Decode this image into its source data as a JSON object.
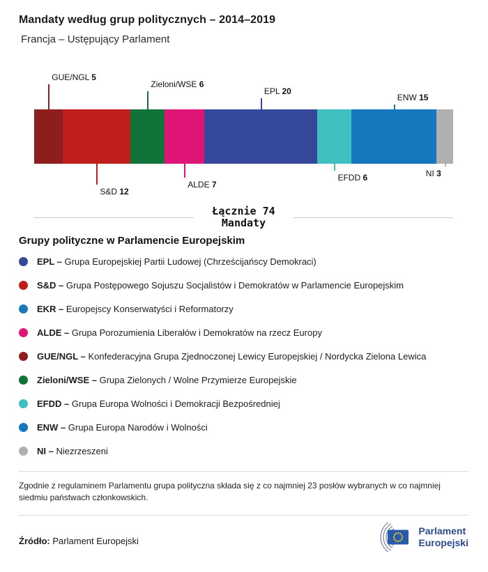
{
  "header": {
    "title": "Mandaty według grup politycznych – 2014–2019",
    "subtitle": "Francja – Ustępujący Parlament"
  },
  "chart_data": {
    "type": "bar",
    "variant": "horizontal-stacked",
    "title": "Mandaty według grup politycznych – 2014–2019",
    "subtitle": "Francja – Ustępujący Parlament",
    "total": 74,
    "total_label": "Łącznie 74",
    "total_sublabel": "Mandaty",
    "categories": [
      "GUE/NGL",
      "S&D",
      "Zieloni/WSE",
      "ALDE",
      "EPL",
      "EFDD",
      "ENW",
      "NI"
    ],
    "values": [
      5,
      12,
      6,
      7,
      20,
      6,
      15,
      3
    ],
    "segments": [
      {
        "name": "GUE/NGL",
        "value": 5,
        "color": "#8e1e1e",
        "label_position": "above"
      },
      {
        "name": "S&D",
        "value": 12,
        "color": "#c01d1d",
        "label_position": "below"
      },
      {
        "name": "Zieloni/WSE",
        "value": 6,
        "color": "#11733a",
        "label_position": "above"
      },
      {
        "name": "ALDE",
        "value": 7,
        "color": "#df1577",
        "label_position": "below"
      },
      {
        "name": "EPL",
        "value": 20,
        "color": "#36489c",
        "label_position": "above"
      },
      {
        "name": "EFDD",
        "value": 6,
        "color": "#3fbfbf",
        "label_position": "below"
      },
      {
        "name": "ENW",
        "value": 15,
        "color": "#1577bd",
        "label_position": "above"
      },
      {
        "name": "NI",
        "value": 3,
        "color": "#b0b0b0",
        "label_position": "below"
      }
    ]
  },
  "legend": {
    "heading": "Grupy polityczne w Parlamencie Europejskim",
    "items": [
      {
        "abbr": "EPL",
        "label": "EPL –",
        "name": "Grupa Europejskiej Partii Ludowej (Chrześcijańscy Demokraci)",
        "color": "#36489c"
      },
      {
        "abbr": "S&D",
        "label": "S&D –",
        "name": "Grupa Postępowego Sojuszu Socjalistów i Demokratów w Parlamencie Europejskim",
        "color": "#c01d1d"
      },
      {
        "abbr": "EKR",
        "label": "EKR –",
        "name": "Europejscy Konserwatyści i Reformatorzy",
        "color": "#1c7ab9"
      },
      {
        "abbr": "ALDE",
        "label": "ALDE –",
        "name": "Grupa Porozumienia Liberałów i Demokratów na rzecz Europy",
        "color": "#df1577"
      },
      {
        "abbr": "GUE/NGL",
        "label": "GUE/NGL –",
        "name": "Konfederacyjna Grupa Zjednoczonej Lewicy Europejskiej / Nordycka Zielona Lewica",
        "color": "#8e1e1e"
      },
      {
        "abbr": "Zieloni/WSE",
        "label": "Zieloni/WSE –",
        "name": "Grupa Zielonych / Wolne Przymierze Europejskie",
        "color": "#11733a"
      },
      {
        "abbr": "EFDD",
        "label": "EFDD –",
        "name": "Grupa Europa Wolności i Demokracji Bezpośredniej",
        "color": "#3fbfbf"
      },
      {
        "abbr": "ENW",
        "label": "ENW –",
        "name": "Grupa Europa Narodów i Wolności",
        "color": "#1577bd"
      },
      {
        "abbr": "NI",
        "label": "NI –",
        "name": "Niezrzeszeni",
        "color": "#b0b0b0"
      }
    ]
  },
  "footnote": "Zgodnie z regulaminem Parlamentu grupa polityczna składa się z co najmniej 23 posłów wybranych w co najmniej siedmiu państwach członkowskich.",
  "source": {
    "label": "Źródło:",
    "text": "Parlament Europejski"
  },
  "logo": {
    "line1": "Parlament",
    "line2": "Europejski"
  }
}
